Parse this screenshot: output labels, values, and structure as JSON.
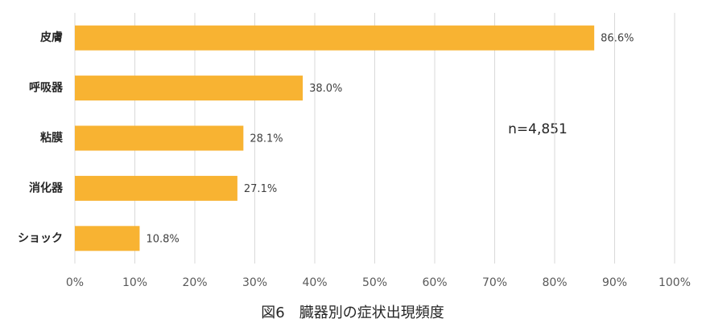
{
  "chart_data": {
    "type": "bar",
    "orientation": "horizontal",
    "title": "図6　臓器別の症状出現頻度",
    "categories": [
      "皮膚",
      "呼吸器",
      "粘膜",
      "消化器",
      "ショック"
    ],
    "values": [
      86.6,
      38.0,
      28.1,
      27.1,
      10.8
    ],
    "value_labels": [
      "86.6%",
      "38.0%",
      "28.1%",
      "27.1%",
      "10.8%"
    ],
    "color": "#f8b332",
    "xlim": [
      0,
      100
    ],
    "xticks": [
      {
        "value": 0,
        "label": "0%"
      },
      {
        "value": 10,
        "label": "10%"
      },
      {
        "value": 20,
        "label": "20%"
      },
      {
        "value": 30,
        "label": "30%"
      },
      {
        "value": 40,
        "label": "40%"
      },
      {
        "value": 50,
        "label": "50%"
      },
      {
        "value": 60,
        "label": "60%"
      },
      {
        "value": 70,
        "label": "70%"
      },
      {
        "value": 80,
        "label": "80%"
      },
      {
        "value": 90,
        "label": "90%"
      },
      {
        "value": 100,
        "label": "100%"
      }
    ],
    "grid": true,
    "annotation": "n=4,851"
  }
}
